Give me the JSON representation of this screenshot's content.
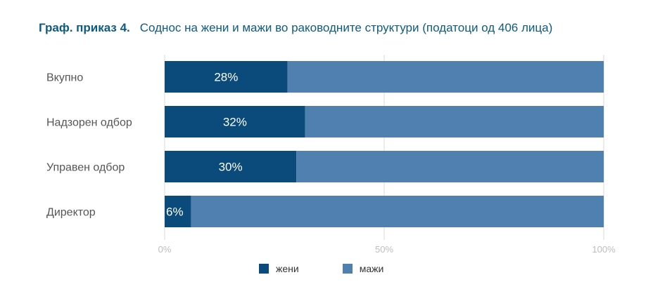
{
  "title": {
    "number": "Граф. приказ 4.",
    "text": "Соднос на жени и мажи во раководните структури (податоци од 406 лица)"
  },
  "colors": {
    "women": "#0b4b7b",
    "men": "#5080b0",
    "grid": "#d9d9d9"
  },
  "chart_data": {
    "type": "bar",
    "orientation": "horizontal",
    "stacked": true,
    "categories": [
      "Вкупно",
      "Надзорен одбор",
      "Управен одбор",
      "Директор"
    ],
    "series": [
      {
        "name": "жени",
        "values": [
          28,
          32,
          30,
          6
        ],
        "labels": [
          "28%",
          "32%",
          "30%",
          "6%"
        ]
      },
      {
        "name": "мажи",
        "values": [
          72,
          68,
          70,
          94
        ]
      }
    ],
    "xlim": [
      0,
      100
    ],
    "ticks": [
      "0%",
      "50%",
      "100%"
    ],
    "grid": true,
    "legend": "bottom"
  }
}
